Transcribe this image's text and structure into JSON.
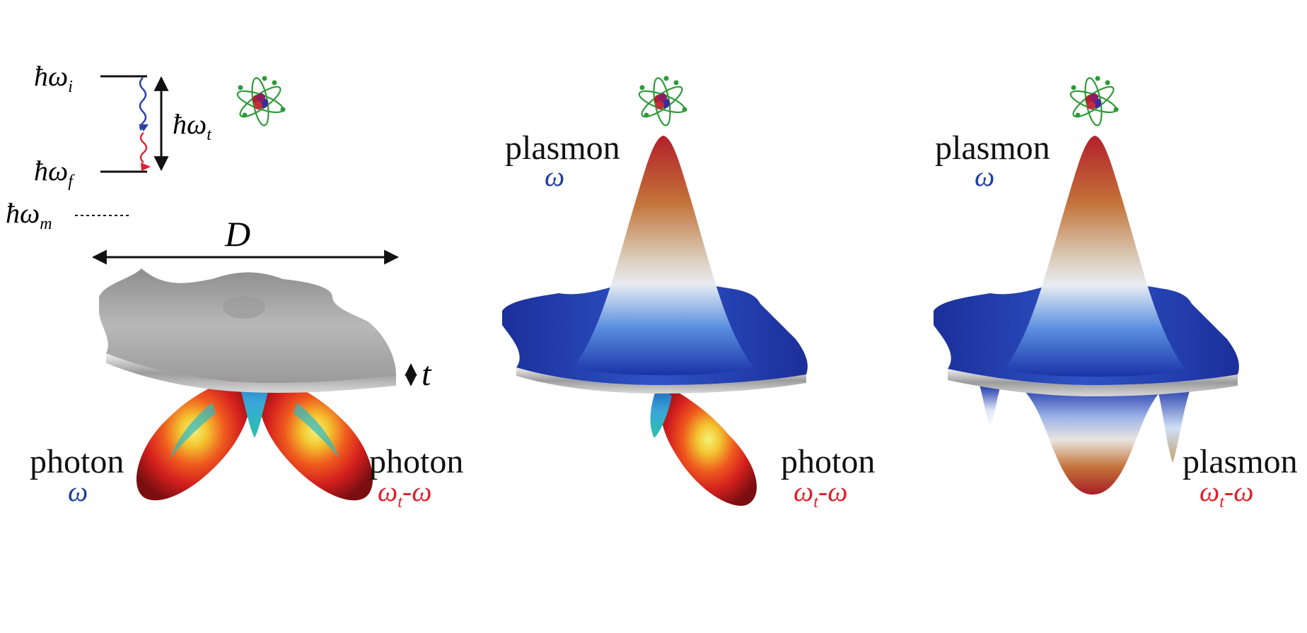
{
  "energy_levels": {
    "initial": {
      "base": "ħω",
      "sub": "i"
    },
    "final": {
      "base": "ħω",
      "sub": "f"
    },
    "transition": {
      "base": "ħω",
      "sub": "t"
    },
    "intermediate": {
      "base": "ħω",
      "sub": "m"
    }
  },
  "dimensions": {
    "diameter": "D",
    "thickness": "t"
  },
  "panel_1": {
    "left": {
      "word": "photon",
      "freq": "ω"
    },
    "right": {
      "word": "photon",
      "freq_base": "ω",
      "freq_sub": "t",
      "freq_rest": "-ω"
    }
  },
  "panel_2": {
    "top": {
      "word": "plasmon",
      "freq": "ω"
    },
    "right": {
      "word": "photon",
      "freq_base": "ω",
      "freq_sub": "t",
      "freq_rest": "-ω"
    }
  },
  "panel_3": {
    "top": {
      "word": "plasmon",
      "freq": "ω"
    },
    "right": {
      "word": "plasmon",
      "freq_base": "ω",
      "freq_sub": "t",
      "freq_rest": "-ω"
    }
  },
  "colors": {
    "blue_label": "#1f3f9c",
    "red_label": "#e0202c",
    "disk_silver": "#a9a9a9",
    "field_blue": "#1a33a8",
    "peak_red": "#b4202a"
  }
}
